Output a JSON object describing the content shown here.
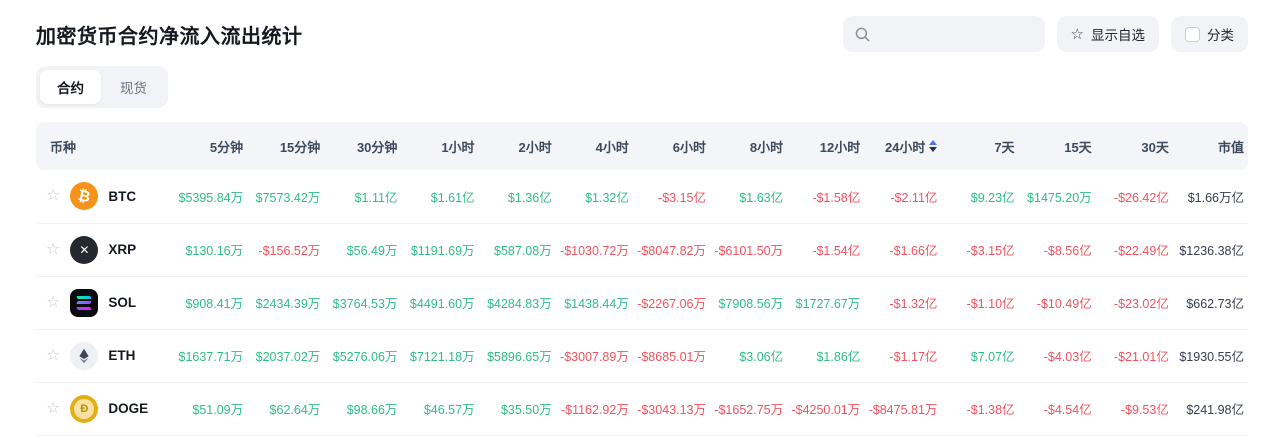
{
  "page": {
    "title": "加密货币合约净流入流出统计",
    "tabs": [
      {
        "label": "合约",
        "active": true
      },
      {
        "label": "现货",
        "active": false
      }
    ],
    "toolbar": {
      "search_placeholder": "",
      "show_favorites_label": "显示自选",
      "category_label": "分类"
    }
  },
  "icons": {
    "search": "magnifier-glyph",
    "favorites_button": "star-outline",
    "category_button": "empty-checkbox",
    "row_favorite": "star-outline",
    "sort": "up-down-carets"
  },
  "colors": {
    "positive": "#2EBD85",
    "negative": "#F0525F",
    "market_cap_text": "#353E4E",
    "btc_brand": "#F7931A",
    "xrp_brand": "#23292F",
    "sol_brand": "#0B0B0F",
    "doge_brand": "#E3AE12",
    "sort_active_caret": "#4A78F5"
  },
  "table": {
    "headers": [
      "币种",
      "5分钟",
      "15分钟",
      "30分钟",
      "1小时",
      "2小时",
      "4小时",
      "6小时",
      "8小时",
      "12小时",
      "24小时",
      "7天",
      "15天",
      "30天",
      "市值"
    ],
    "keys": [
      "coin",
      "5min",
      "15min",
      "30min",
      "1h",
      "2h",
      "4h",
      "6h",
      "8h",
      "12h",
      "24h",
      "7d",
      "15d",
      "30d",
      "marketcap"
    ],
    "sort_key": "24h",
    "rows": [
      {
        "symbol": "BTC",
        "icon": "btc",
        "values": [
          "$5395.84万",
          "$7573.42万",
          "$1.11亿",
          "$1.61亿",
          "$1.36亿",
          "$1.32亿",
          "-$3.15亿",
          "$1.63亿",
          "-$1.58亿",
          "-$2.11亿",
          "$9.23亿",
          "$1475.20万",
          "-$26.42亿",
          "$1.66万亿"
        ]
      },
      {
        "symbol": "XRP",
        "icon": "xrp",
        "values": [
          "$130.16万",
          "-$156.52万",
          "$56.49万",
          "$1191.69万",
          "$587.08万",
          "-$1030.72万",
          "-$8047.82万",
          "-$6101.50万",
          "-$1.54亿",
          "-$1.66亿",
          "-$3.15亿",
          "-$8.56亿",
          "-$22.49亿",
          "$1236.38亿"
        ]
      },
      {
        "symbol": "SOL",
        "icon": "sol",
        "values": [
          "$908.41万",
          "$2434.39万",
          "$3764.53万",
          "$4491.60万",
          "$4284.83万",
          "$1438.44万",
          "-$2267.06万",
          "$7908.56万",
          "$1727.67万",
          "-$1.32亿",
          "-$1.10亿",
          "-$10.49亿",
          "-$23.02亿",
          "$662.73亿"
        ]
      },
      {
        "symbol": "ETH",
        "icon": "eth",
        "values": [
          "$1637.71万",
          "$2037.02万",
          "$5276.06万",
          "$7121.18万",
          "$5896.65万",
          "-$3007.89万",
          "-$8685.01万",
          "$3.06亿",
          "$1.86亿",
          "-$1.17亿",
          "$7.07亿",
          "-$4.03亿",
          "-$21.01亿",
          "$1930.55亿"
        ]
      },
      {
        "symbol": "DOGE",
        "icon": "doge",
        "values": [
          "$51.09万",
          "$62.64万",
          "$98.66万",
          "$46.57万",
          "$35.50万",
          "-$1162.92万",
          "-$3043.13万",
          "-$1652.75万",
          "-$4250.01万",
          "-$8475.81万",
          "-$1.38亿",
          "-$4.54亿",
          "-$9.53亿",
          "$241.98亿"
        ]
      }
    ]
  }
}
